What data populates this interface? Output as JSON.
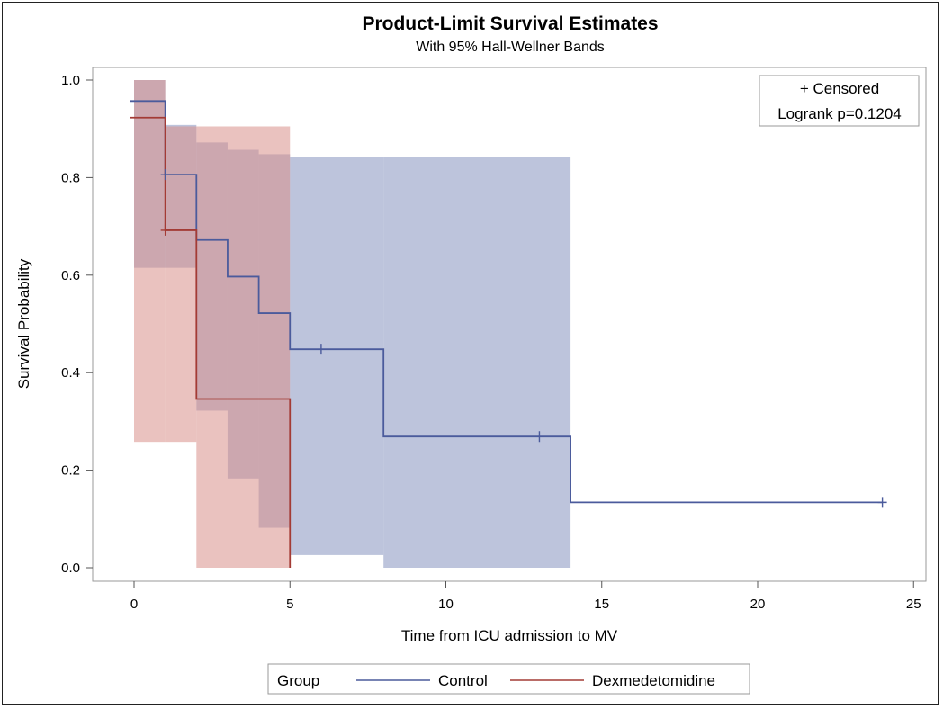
{
  "chart_data": {
    "type": "line",
    "subtype": "kaplan-meier step survival curves with confidence bands",
    "title": "Product-Limit Survival Estimates",
    "subtitle": "With 95% Hall-Wellner Bands",
    "xlabel": "Time from ICU admission to MV",
    "ylabel": "Survival Probability",
    "xlim": [
      0,
      25
    ],
    "ylim": [
      0,
      1.0
    ],
    "xticks": [
      "0",
      "5",
      "10",
      "15",
      "20",
      "25"
    ],
    "yticks": [
      "0.0",
      "0.2",
      "0.4",
      "0.6",
      "0.8",
      "1.0"
    ],
    "grid": false,
    "inset": {
      "censored_label": "+ Censored",
      "logrank": "Logrank p=0.1204",
      "placement": "top-right"
    },
    "legend": {
      "title": "Group",
      "placement": "bottom",
      "entries": [
        "Control",
        "Dexmedetomidine"
      ]
    },
    "series": [
      {
        "name": "Control",
        "color": "#4b5b9c",
        "band_color": "#8e99c3",
        "steps": [
          {
            "x": 0,
            "y": 0.957
          },
          {
            "x": 1,
            "y": 0.806
          },
          {
            "x": 2,
            "y": 0.672
          },
          {
            "x": 3,
            "y": 0.597
          },
          {
            "x": 4,
            "y": 0.522
          },
          {
            "x": 5,
            "y": 0.448
          },
          {
            "x": 8,
            "y": 0.269
          },
          {
            "x": 14,
            "y": 0.134
          }
        ],
        "end_x": 24,
        "censored": [
          {
            "x": 1,
            "y": 0.806
          },
          {
            "x": 6,
            "y": 0.448
          },
          {
            "x": 13,
            "y": 0.269
          },
          {
            "x": 24,
            "y": 0.134
          }
        ],
        "band": [
          {
            "x0": 0,
            "x1": 1,
            "lower": 0.615,
            "upper": 1.0
          },
          {
            "x0": 1,
            "x1": 2,
            "lower": 0.615,
            "upper": 0.908
          },
          {
            "x0": 2,
            "x1": 3,
            "lower": 0.322,
            "upper": 0.872
          },
          {
            "x0": 3,
            "x1": 4,
            "lower": 0.183,
            "upper": 0.857
          },
          {
            "x0": 4,
            "x1": 5,
            "lower": 0.082,
            "upper": 0.848
          },
          {
            "x0": 5,
            "x1": 8,
            "lower": 0.026,
            "upper": 0.843
          },
          {
            "x0": 8,
            "x1": 14,
            "lower": 0.0,
            "upper": 0.843
          }
        ]
      },
      {
        "name": "Dexmedetomidine",
        "color": "#a33b35",
        "band_color": "#d98f8b",
        "steps": [
          {
            "x": 0,
            "y": 0.923
          },
          {
            "x": 1,
            "y": 0.692
          },
          {
            "x": 2,
            "y": 0.346
          },
          {
            "x": 5,
            "y": 0.0
          }
        ],
        "end_x": 5,
        "censored": [
          {
            "x": 1,
            "y": 0.692
          }
        ],
        "band": [
          {
            "x0": 0,
            "x1": 1,
            "lower": 0.258,
            "upper": 1.0
          },
          {
            "x0": 1,
            "x1": 2,
            "lower": 0.258,
            "upper": 0.905
          },
          {
            "x0": 2,
            "x1": 5,
            "lower": 0.0,
            "upper": 0.905
          }
        ]
      }
    ]
  }
}
